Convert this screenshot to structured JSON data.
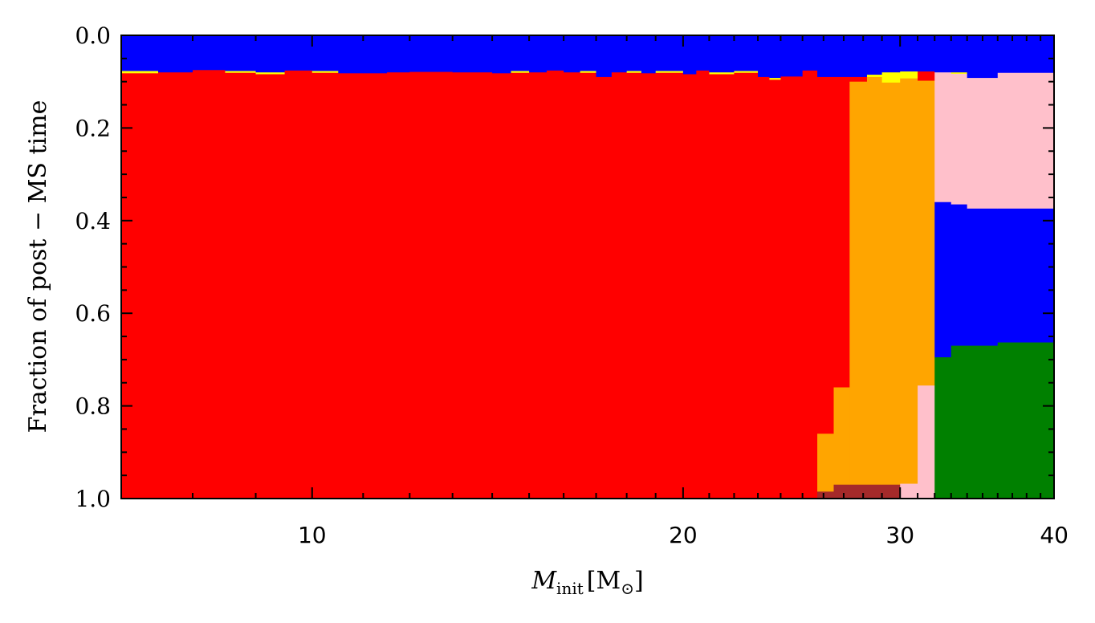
{
  "chart_data": {
    "type": "area",
    "xlabel_parts": {
      "base": "M",
      "sub": "init",
      "unit_open": "[M",
      "unit_sub": "⊙",
      "unit_close": "]"
    },
    "ylabel": "Fraction of post − MS time",
    "x_scale": "log",
    "xlim": [
      7.0,
      40.0
    ],
    "ylim": [
      0.0,
      1.0
    ],
    "y_inverted": true,
    "x_ticks": [
      10,
      20,
      30,
      40
    ],
    "x_tick_labels": [
      "10",
      "20",
      "30",
      "40"
    ],
    "y_ticks": [
      0.0,
      0.2,
      0.4,
      0.6,
      0.8,
      1.0
    ],
    "y_tick_labels": [
      "0.0",
      "0.2",
      "0.4",
      "0.6",
      "0.8",
      "1.0"
    ],
    "grid": false,
    "legend": "none",
    "colors": {
      "blue": "#0000ff",
      "yellow": "#ffff00",
      "red": "#ff0000",
      "orange": "#ffa500",
      "pink": "#ffc0cb",
      "green": "#008000",
      "brown": "#a52a2a"
    },
    "series_order": [
      "blue_top",
      "yellow",
      "red",
      "orange",
      "pink_upper",
      "blue_mid",
      "green",
      "pink_lower",
      "brown"
    ],
    "bins": [
      {
        "x0": 7.0,
        "x1": 7.5,
        "stack": [
          [
            "blue",
            0.077
          ],
          [
            "yellow",
            0.005
          ],
          [
            "red",
            0.918
          ]
        ]
      },
      {
        "x0": 7.5,
        "x1": 8.0,
        "stack": [
          [
            "blue",
            0.08
          ],
          [
            "red",
            0.92
          ]
        ]
      },
      {
        "x0": 8.0,
        "x1": 8.5,
        "stack": [
          [
            "blue",
            0.075
          ],
          [
            "red",
            0.925
          ]
        ]
      },
      {
        "x0": 8.5,
        "x1": 9.0,
        "stack": [
          [
            "blue",
            0.077
          ],
          [
            "yellow",
            0.004
          ],
          [
            "red",
            0.919
          ]
        ]
      },
      {
        "x0": 9.0,
        "x1": 9.5,
        "stack": [
          [
            "blue",
            0.08
          ],
          [
            "yellow",
            0.004
          ],
          [
            "red",
            0.916
          ]
        ]
      },
      {
        "x0": 9.5,
        "x1": 10.0,
        "stack": [
          [
            "blue",
            0.076
          ],
          [
            "red",
            0.924
          ]
        ]
      },
      {
        "x0": 10.0,
        "x1": 10.5,
        "stack": [
          [
            "blue",
            0.077
          ],
          [
            "yellow",
            0.004
          ],
          [
            "red",
            0.919
          ]
        ]
      },
      {
        "x0": 10.5,
        "x1": 11.0,
        "stack": [
          [
            "blue",
            0.082
          ],
          [
            "red",
            0.918
          ]
        ]
      },
      {
        "x0": 11.0,
        "x1": 11.5,
        "stack": [
          [
            "blue",
            0.082
          ],
          [
            "red",
            0.918
          ]
        ]
      },
      {
        "x0": 11.5,
        "x1": 12.0,
        "stack": [
          [
            "blue",
            0.08
          ],
          [
            "red",
            0.92
          ]
        ]
      },
      {
        "x0": 12.0,
        "x1": 13.0,
        "stack": [
          [
            "blue",
            0.079
          ],
          [
            "red",
            0.921
          ]
        ]
      },
      {
        "x0": 13.0,
        "x1": 14.0,
        "stack": [
          [
            "blue",
            0.08
          ],
          [
            "red",
            0.92
          ]
        ]
      },
      {
        "x0": 14.0,
        "x1": 14.5,
        "stack": [
          [
            "blue",
            0.082
          ],
          [
            "red",
            0.918
          ]
        ]
      },
      {
        "x0": 14.5,
        "x1": 15.0,
        "stack": [
          [
            "blue",
            0.077
          ],
          [
            "yellow",
            0.004
          ],
          [
            "red",
            0.919
          ]
        ]
      },
      {
        "x0": 15.0,
        "x1": 15.5,
        "stack": [
          [
            "blue",
            0.08
          ],
          [
            "red",
            0.92
          ]
        ]
      },
      {
        "x0": 15.5,
        "x1": 16.0,
        "stack": [
          [
            "blue",
            0.076
          ],
          [
            "red",
            0.924
          ]
        ]
      },
      {
        "x0": 16.0,
        "x1": 16.5,
        "stack": [
          [
            "blue",
            0.08
          ],
          [
            "red",
            0.92
          ]
        ]
      },
      {
        "x0": 16.5,
        "x1": 17.0,
        "stack": [
          [
            "blue",
            0.077
          ],
          [
            "yellow",
            0.004
          ],
          [
            "red",
            0.919
          ]
        ]
      },
      {
        "x0": 17.0,
        "x1": 17.5,
        "stack": [
          [
            "blue",
            0.09
          ],
          [
            "red",
            0.91
          ]
        ]
      },
      {
        "x0": 17.5,
        "x1": 18.0,
        "stack": [
          [
            "blue",
            0.08
          ],
          [
            "red",
            0.92
          ]
        ]
      },
      {
        "x0": 18.0,
        "x1": 18.5,
        "stack": [
          [
            "blue",
            0.077
          ],
          [
            "yellow",
            0.004
          ],
          [
            "red",
            0.919
          ]
        ]
      },
      {
        "x0": 18.5,
        "x1": 19.0,
        "stack": [
          [
            "blue",
            0.082
          ],
          [
            "red",
            0.918
          ]
        ]
      },
      {
        "x0": 19.0,
        "x1": 20.0,
        "stack": [
          [
            "blue",
            0.077
          ],
          [
            "yellow",
            0.004
          ],
          [
            "red",
            0.919
          ]
        ]
      },
      {
        "x0": 20.0,
        "x1": 20.5,
        "stack": [
          [
            "blue",
            0.084
          ],
          [
            "red",
            0.916
          ]
        ]
      },
      {
        "x0": 20.5,
        "x1": 21.0,
        "stack": [
          [
            "blue",
            0.076
          ],
          [
            "red",
            0.924
          ]
        ]
      },
      {
        "x0": 21.0,
        "x1": 22.0,
        "stack": [
          [
            "blue",
            0.08
          ],
          [
            "yellow",
            0.004
          ],
          [
            "red",
            0.916
          ]
        ]
      },
      {
        "x0": 22.0,
        "x1": 23.0,
        "stack": [
          [
            "blue",
            0.077
          ],
          [
            "yellow",
            0.004
          ],
          [
            "red",
            0.919
          ]
        ]
      },
      {
        "x0": 23.0,
        "x1": 23.5,
        "stack": [
          [
            "blue",
            0.09
          ],
          [
            "red",
            0.91
          ]
        ]
      },
      {
        "x0": 23.5,
        "x1": 24.0,
        "stack": [
          [
            "blue",
            0.092
          ],
          [
            "yellow",
            0.004
          ],
          [
            "red",
            0.904
          ]
        ]
      },
      {
        "x0": 24.0,
        "x1": 25.0,
        "stack": [
          [
            "blue",
            0.089
          ],
          [
            "red",
            0.911
          ]
        ]
      },
      {
        "x0": 25.0,
        "x1": 25.7,
        "stack": [
          [
            "blue",
            0.076
          ],
          [
            "red",
            0.924
          ]
        ]
      },
      {
        "x0": 25.7,
        "x1": 26.5,
        "stack": [
          [
            "blue",
            0.09
          ],
          [
            "red",
            0.77
          ],
          [
            "orange",
            0.125
          ],
          [
            "brown",
            0.015
          ]
        ]
      },
      {
        "x0": 26.5,
        "x1": 27.3,
        "stack": [
          [
            "blue",
            0.09
          ],
          [
            "red",
            0.67
          ],
          [
            "orange",
            0.21
          ],
          [
            "brown",
            0.03
          ]
        ]
      },
      {
        "x0": 27.3,
        "x1": 28.2,
        "stack": [
          [
            "blue",
            0.09
          ],
          [
            "red",
            0.01
          ],
          [
            "orange",
            0.87
          ],
          [
            "brown",
            0.03
          ]
        ]
      },
      {
        "x0": 28.2,
        "x1": 29.0,
        "stack": [
          [
            "blue",
            0.085
          ],
          [
            "yellow",
            0.005
          ],
          [
            "orange",
            0.88
          ],
          [
            "brown",
            0.03
          ]
        ]
      },
      {
        "x0": 29.0,
        "x1": 30.0,
        "stack": [
          [
            "blue",
            0.08
          ],
          [
            "yellow",
            0.022
          ],
          [
            "orange",
            0.868
          ],
          [
            "brown",
            0.03
          ]
        ]
      },
      {
        "x0": 30.0,
        "x1": 31.0,
        "stack": [
          [
            "blue",
            0.078
          ],
          [
            "yellow",
            0.015
          ],
          [
            "orange",
            0.875
          ],
          [
            "pink",
            0.032
          ]
        ]
      },
      {
        "x0": 31.0,
        "x1": 32.0,
        "stack": [
          [
            "blue",
            0.078
          ],
          [
            "red",
            0.02
          ],
          [
            "orange",
            0.658
          ],
          [
            "pink",
            0.244
          ]
        ]
      },
      {
        "x0": 32.0,
        "x1": 33.0,
        "stack": [
          [
            "blue",
            0.08
          ],
          [
            "pink",
            0.28
          ],
          [
            "blue",
            0.335
          ],
          [
            "green",
            0.305
          ]
        ]
      },
      {
        "x0": 33.0,
        "x1": 34.0,
        "stack": [
          [
            "blue",
            0.08
          ],
          [
            "yellow",
            0.003
          ],
          [
            "pink",
            0.282
          ],
          [
            "blue",
            0.305
          ],
          [
            "green",
            0.33
          ]
        ]
      },
      {
        "x0": 34.0,
        "x1": 36.0,
        "stack": [
          [
            "blue",
            0.092
          ],
          [
            "pink",
            0.282
          ],
          [
            "blue",
            0.296
          ],
          [
            "green",
            0.33
          ]
        ]
      },
      {
        "x0": 36.0,
        "x1": 40.0,
        "stack": [
          [
            "blue",
            0.081
          ],
          [
            "pink",
            0.293
          ],
          [
            "blue",
            0.289
          ],
          [
            "green",
            0.337
          ]
        ]
      }
    ]
  }
}
